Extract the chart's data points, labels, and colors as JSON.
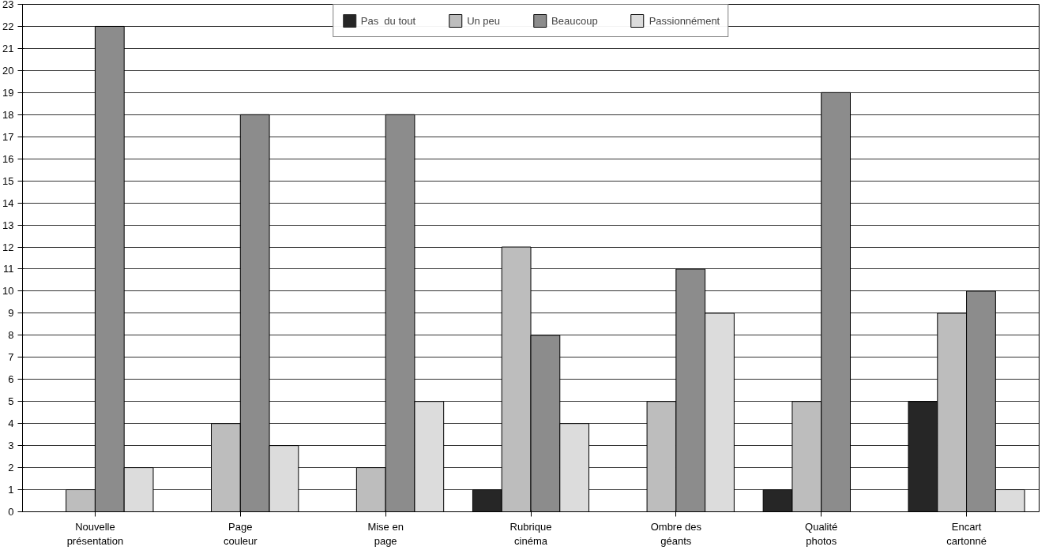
{
  "chart_data": {
    "type": "bar",
    "categories": [
      "Nouvelle\nprésentation",
      "Page\ncouleur",
      "Mise en\npage",
      "Rubrique\ncinéma",
      "Ombre des\ngéants",
      "Qualité\nphotos",
      "Encart\ncartonné"
    ],
    "series": [
      {
        "name": "Pas  du tout",
        "color": "#262626",
        "values": [
          0,
          0,
          0,
          1,
          0,
          1,
          5
        ]
      },
      {
        "name": "Un peu",
        "color": "#bdbdbd",
        "values": [
          1,
          4,
          2,
          12,
          5,
          5,
          9
        ]
      },
      {
        "name": "Beaucoup",
        "color": "#8c8c8c",
        "values": [
          22,
          18,
          18,
          8,
          11,
          19,
          10
        ]
      },
      {
        "name": "Passionnément",
        "color": "#dcdcdc",
        "values": [
          2,
          3,
          5,
          4,
          9,
          0,
          1
        ]
      }
    ],
    "ylim": [
      0,
      23
    ],
    "yticks": [
      0,
      1,
      2,
      3,
      4,
      5,
      6,
      7,
      8,
      9,
      10,
      11,
      12,
      13,
      14,
      15,
      16,
      17,
      18,
      19,
      20,
      21,
      22,
      23
    ],
    "grid": "y",
    "legend": "top"
  }
}
